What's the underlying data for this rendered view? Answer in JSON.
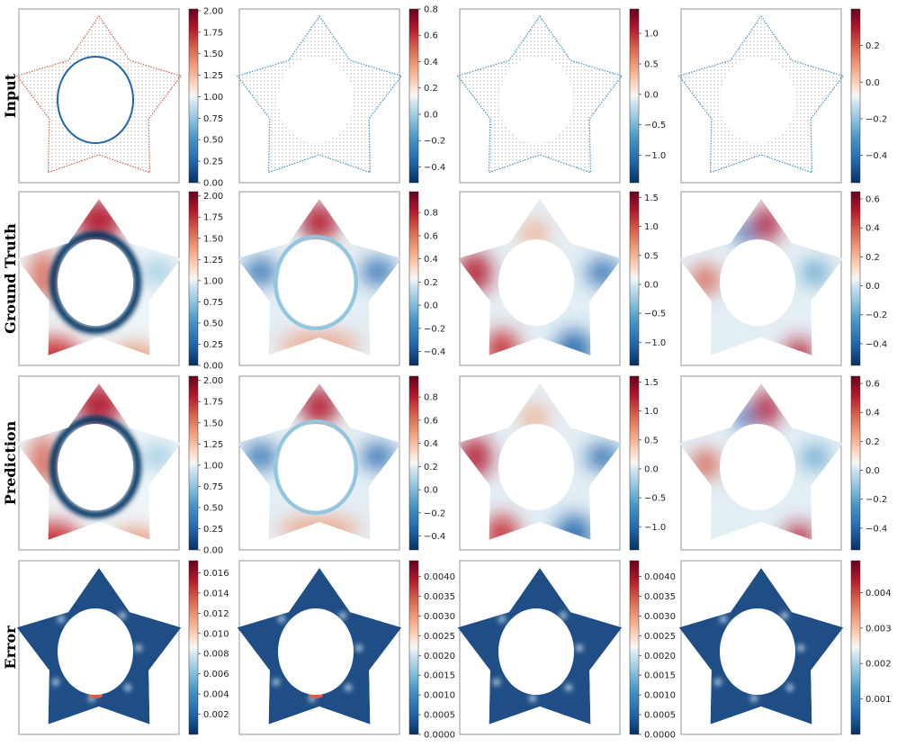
{
  "chart_data": {
    "type": "heatmap",
    "layout": {
      "rows": 4,
      "columns": 4,
      "grid": false,
      "domain": "star-shaped region with elliptical hole"
    },
    "row_labels": [
      "Input",
      "Ground Truth",
      "Prediction",
      "Error"
    ],
    "colormap": "RdBu_r",
    "panels": [
      [
        {
          "row": "Input",
          "col": 1,
          "style": "points",
          "colorbar": {
            "range": [
              0.0,
              2.02
            ],
            "ticks": [
              "0.00",
              "0.25",
              "0.50",
              "0.75",
              "1.00",
              "1.25",
              "1.50",
              "1.75",
              "2.00"
            ]
          }
        },
        {
          "row": "Input",
          "col": 2,
          "style": "points",
          "colorbar": {
            "range": [
              -0.52,
              0.8
            ],
            "ticks": [
              "−0.4",
              "−0.2",
              "0.0",
              "0.2",
              "0.4",
              "0.6",
              "0.8"
            ]
          }
        },
        {
          "row": "Input",
          "col": 3,
          "style": "points",
          "colorbar": {
            "range": [
              -1.45,
              1.4
            ],
            "ticks": [
              "−1.0",
              "−0.5",
              "0.0",
              "0.5",
              "1.0"
            ]
          }
        },
        {
          "row": "Input",
          "col": 4,
          "style": "points",
          "colorbar": {
            "range": [
              -0.55,
              0.4
            ],
            "ticks": [
              "−0.4",
              "−0.2",
              "0.0",
              "0.2"
            ]
          }
        }
      ],
      [
        {
          "row": "Ground Truth",
          "col": 1,
          "style": "field",
          "colorbar": {
            "range": [
              0.0,
              2.05
            ],
            "ticks": [
              "0.00",
              "0.25",
              "0.50",
              "0.75",
              "1.00",
              "1.25",
              "1.50",
              "1.75",
              "2.00"
            ]
          }
        },
        {
          "row": "Ground Truth",
          "col": 2,
          "style": "field",
          "colorbar": {
            "range": [
              -0.52,
              0.98
            ],
            "ticks": [
              "−0.4",
              "−0.2",
              "0.0",
              "0.2",
              "0.4",
              "0.6",
              "0.8"
            ]
          }
        },
        {
          "row": "Ground Truth",
          "col": 3,
          "style": "field",
          "colorbar": {
            "range": [
              -1.4,
              1.6
            ],
            "ticks": [
              "−1.0",
              "−0.5",
              "0.0",
              "0.5",
              "1.0",
              "1.5"
            ]
          }
        },
        {
          "row": "Ground Truth",
          "col": 4,
          "style": "field",
          "colorbar": {
            "range": [
              -0.55,
              0.65
            ],
            "ticks": [
              "−0.4",
              "−0.2",
              "0.0",
              "0.2",
              "0.4",
              "0.6"
            ]
          }
        }
      ],
      [
        {
          "row": "Prediction",
          "col": 1,
          "style": "field",
          "colorbar": {
            "range": [
              0.0,
              2.05
            ],
            "ticks": [
              "0.00",
              "0.25",
              "0.50",
              "0.75",
              "1.00",
              "1.25",
              "1.50",
              "1.75",
              "2.00"
            ]
          }
        },
        {
          "row": "Prediction",
          "col": 2,
          "style": "field",
          "colorbar": {
            "range": [
              -0.52,
              0.98
            ],
            "ticks": [
              "−0.4",
              "−0.2",
              "0.0",
              "0.2",
              "0.4",
              "0.6",
              "0.8"
            ]
          }
        },
        {
          "row": "Prediction",
          "col": 3,
          "style": "field",
          "colorbar": {
            "range": [
              -1.4,
              1.6
            ],
            "ticks": [
              "−1.0",
              "−0.5",
              "0.0",
              "0.5",
              "1.0",
              "1.5"
            ]
          }
        },
        {
          "row": "Prediction",
          "col": 4,
          "style": "field",
          "colorbar": {
            "range": [
              -0.55,
              0.65
            ],
            "ticks": [
              "−0.4",
              "−0.2",
              "0.0",
              "0.2",
              "0.4",
              "0.6"
            ]
          }
        }
      ],
      [
        {
          "row": "Error",
          "col": 1,
          "style": "error",
          "colorbar": {
            "range": [
              0.0,
              0.0172
            ],
            "ticks": [
              "0.002",
              "0.004",
              "0.006",
              "0.008",
              "0.010",
              "0.012",
              "0.014",
              "0.016"
            ]
          }
        },
        {
          "row": "Error",
          "col": 2,
          "style": "error",
          "colorbar": {
            "range": [
              0.0,
              0.0044
            ],
            "ticks": [
              "0.0000",
              "0.0005",
              "0.0010",
              "0.0015",
              "0.0020",
              "0.0025",
              "0.0030",
              "0.0035",
              "0.0040"
            ]
          }
        },
        {
          "row": "Error",
          "col": 3,
          "style": "error",
          "colorbar": {
            "range": [
              0.0,
              0.0044
            ],
            "ticks": [
              "0.0000",
              "0.0005",
              "0.0010",
              "0.0015",
              "0.0020",
              "0.0025",
              "0.0030",
              "0.0035",
              "0.0040"
            ]
          }
        },
        {
          "row": "Error",
          "col": 4,
          "style": "error",
          "colorbar": {
            "range": [
              0.0,
              0.0049
            ],
            "ticks": [
              "0.001",
              "0.002",
              "0.003",
              "0.004"
            ]
          }
        }
      ]
    ]
  }
}
